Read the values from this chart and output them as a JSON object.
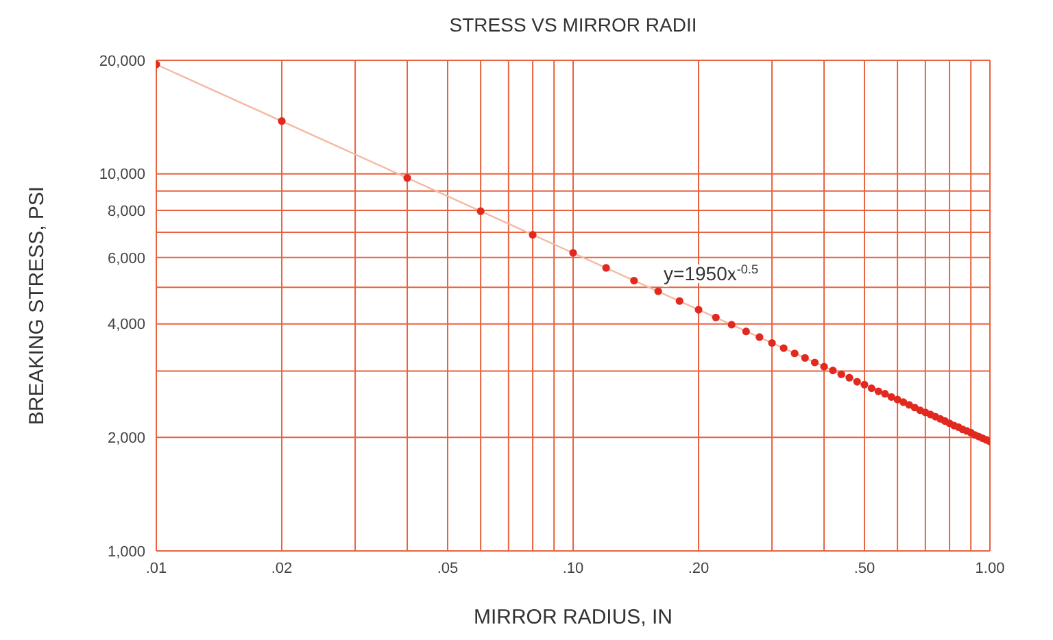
{
  "chart_data": {
    "type": "scatter",
    "title": "STRESS VS MIRROR RADII",
    "xlabel": "MIRROR RADIUS, IN",
    "ylabel": "BREAKING STRESS, PSI",
    "log": "xy",
    "grid": true,
    "xlim": [
      0.01,
      1
    ],
    "ylim": [
      1000,
      20000
    ],
    "xticks": [
      {
        "value": 0.01,
        "label": ".01"
      },
      {
        "value": 0.02,
        "label": ".02"
      },
      {
        "value": 0.03,
        "label": null
      },
      {
        "value": 0.04,
        "label": null
      },
      {
        "value": 0.05,
        "label": ".05"
      },
      {
        "value": 0.06,
        "label": null
      },
      {
        "value": 0.07,
        "label": null
      },
      {
        "value": 0.08,
        "label": null
      },
      {
        "value": 0.09,
        "label": null
      },
      {
        "value": 0.1,
        "label": ".10"
      },
      {
        "value": 0.2,
        "label": ".20"
      },
      {
        "value": 0.3,
        "label": null
      },
      {
        "value": 0.4,
        "label": null
      },
      {
        "value": 0.5,
        "label": ".50"
      },
      {
        "value": 0.6,
        "label": null
      },
      {
        "value": 0.7,
        "label": null
      },
      {
        "value": 0.8,
        "label": null
      },
      {
        "value": 0.9,
        "label": null
      },
      {
        "value": 1,
        "label": "1.00"
      }
    ],
    "yticks": [
      {
        "value": 1000,
        "label": "1,000"
      },
      {
        "value": 2000,
        "label": "2,000"
      },
      {
        "value": 3000,
        "label": null
      },
      {
        "value": 4000,
        "label": "4,000"
      },
      {
        "value": 5000,
        "label": null
      },
      {
        "value": 6000,
        "label": "6,000"
      },
      {
        "value": 7000,
        "label": null
      },
      {
        "value": 8000,
        "label": "8,000"
      },
      {
        "value": 9000,
        "label": null
      },
      {
        "value": 10000,
        "label": "10,000"
      },
      {
        "value": 20000,
        "label": "20,000"
      }
    ],
    "annotations": [
      {
        "text": "y=1950x$^{-0.5}$",
        "x": 0.16,
        "y": 4880
      }
    ],
    "series": [
      {
        "type": "line",
        "color": "#f6b9a3",
        "x": [
          0.01,
          1
        ],
        "values": [
          19500,
          1950
        ]
      },
      {
        "marker": "circle",
        "color": "#e2291f",
        "x": [
          0.01,
          0.02,
          0.04,
          0.06,
          0.08,
          0.1,
          0.12,
          0.14,
          0.16,
          0.18,
          0.2,
          0.22,
          0.24,
          0.26,
          0.28,
          0.3,
          0.32,
          0.34,
          0.36,
          0.38,
          0.4,
          0.42,
          0.44,
          0.46,
          0.48,
          0.5,
          0.52,
          0.54,
          0.56,
          0.58,
          0.6,
          0.62,
          0.64,
          0.66,
          0.68,
          0.7,
          0.72,
          0.74,
          0.76,
          0.78,
          0.8,
          0.82,
          0.84,
          0.86,
          0.88,
          0.9,
          0.92,
          0.94,
          0.96,
          0.98,
          1
        ],
        "values": [
          19500,
          13800,
          9750,
          7960,
          6890,
          6170,
          5630,
          5210,
          4880,
          4600,
          4360,
          4160,
          3980,
          3820,
          3690,
          3560,
          3450,
          3340,
          3250,
          3160,
          3080,
          3010,
          2940,
          2880,
          2810,
          2760,
          2700,
          2650,
          2610,
          2560,
          2520,
          2480,
          2440,
          2400,
          2360,
          2330,
          2300,
          2270,
          2240,
          2210,
          2180,
          2150,
          2130,
          2100,
          2080,
          2060,
          2030,
          2010,
          1990,
          1970,
          1950
        ]
      }
    ]
  }
}
